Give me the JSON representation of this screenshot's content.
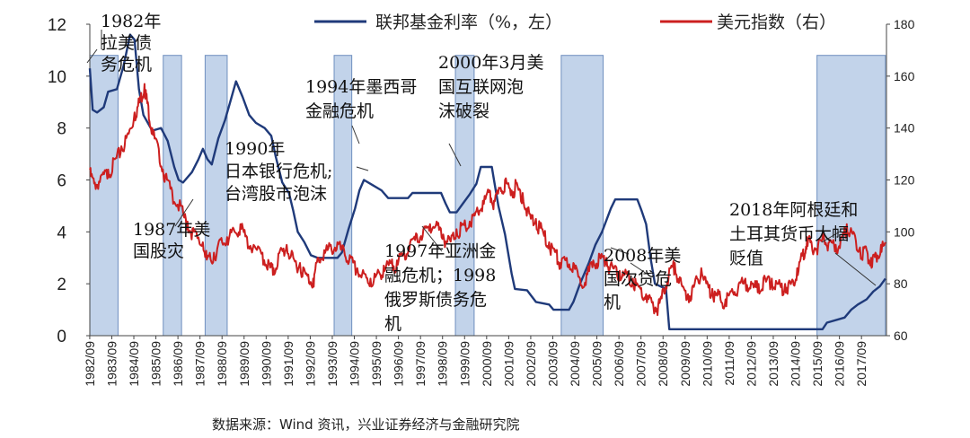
{
  "chart_data": {
    "type": "line",
    "x_range": [
      1982.67,
      2018.8
    ],
    "y_left_range": [
      0,
      12
    ],
    "y_right_range": [
      60,
      180
    ],
    "y_left_ticks": [
      0,
      2,
      4,
      6,
      8,
      10,
      12
    ],
    "y_right_ticks": [
      60,
      80,
      100,
      120,
      140,
      160,
      180
    ],
    "x_tick_labels": [
      "1982/09",
      "1983/09",
      "1984/09",
      "1985/09",
      "1986/09",
      "1987/09",
      "1988/09",
      "1989/09",
      "1990/09",
      "1991/09",
      "1992/09",
      "1993/09",
      "1994/09",
      "1995/09",
      "1996/09",
      "1997/09",
      "1998/09",
      "1999/09",
      "2000/09",
      "2001/09",
      "2002/09",
      "2003/09",
      "2004/09",
      "2005/09",
      "2006/09",
      "2007/09",
      "2008/09",
      "2009/09",
      "2010/09",
      "2011/09",
      "2012/09",
      "2013/09",
      "2014/09",
      "2015/09",
      "2016/09",
      "2017/09"
    ],
    "legend_position": "top",
    "grid": false,
    "colors": {
      "fed_funds": "#1f3a7a",
      "dollar_index": "#cc1f1f",
      "shade": "#b7cbe6",
      "shade_border": "#6f8fbf"
    },
    "series": [
      {
        "name": "联邦基金利率（%，左）",
        "axis": "left",
        "points": [
          [
            1982.67,
            10.3
          ],
          [
            1982.8,
            8.7
          ],
          [
            1983.0,
            8.6
          ],
          [
            1983.3,
            8.8
          ],
          [
            1983.5,
            9.4
          ],
          [
            1983.9,
            9.5
          ],
          [
            1984.2,
            10.4
          ],
          [
            1984.5,
            11.6
          ],
          [
            1984.7,
            11.4
          ],
          [
            1984.9,
            9.5
          ],
          [
            1985.1,
            8.5
          ],
          [
            1985.5,
            7.9
          ],
          [
            1985.9,
            8.0
          ],
          [
            1986.2,
            7.5
          ],
          [
            1986.5,
            6.5
          ],
          [
            1986.7,
            6.0
          ],
          [
            1986.9,
            5.9
          ],
          [
            1987.3,
            6.3
          ],
          [
            1987.6,
            6.8
          ],
          [
            1987.8,
            7.2
          ],
          [
            1988.0,
            6.8
          ],
          [
            1988.2,
            6.6
          ],
          [
            1988.5,
            7.6
          ],
          [
            1988.8,
            8.3
          ],
          [
            1989.1,
            9.2
          ],
          [
            1989.3,
            9.8
          ],
          [
            1989.6,
            9.2
          ],
          [
            1989.9,
            8.5
          ],
          [
            1990.2,
            8.2
          ],
          [
            1990.6,
            8.0
          ],
          [
            1990.9,
            7.7
          ],
          [
            1991.1,
            6.9
          ],
          [
            1991.4,
            5.9
          ],
          [
            1991.7,
            5.5
          ],
          [
            1991.9,
            4.8
          ],
          [
            1992.1,
            4.0
          ],
          [
            1992.4,
            3.6
          ],
          [
            1992.7,
            3.1
          ],
          [
            1993.0,
            3.0
          ],
          [
            1993.5,
            3.0
          ],
          [
            1993.9,
            3.0
          ],
          [
            1994.1,
            3.2
          ],
          [
            1994.4,
            4.1
          ],
          [
            1994.7,
            4.9
          ],
          [
            1994.9,
            5.6
          ],
          [
            1995.1,
            6.0
          ],
          [
            1995.5,
            5.8
          ],
          [
            1995.9,
            5.6
          ],
          [
            1996.2,
            5.3
          ],
          [
            1996.7,
            5.3
          ],
          [
            1997.1,
            5.3
          ],
          [
            1997.3,
            5.5
          ],
          [
            1997.7,
            5.5
          ],
          [
            1998.2,
            5.5
          ],
          [
            1998.6,
            5.5
          ],
          [
            1998.8,
            5.1
          ],
          [
            1999.0,
            4.75
          ],
          [
            1999.3,
            4.75
          ],
          [
            1999.6,
            5.1
          ],
          [
            1999.9,
            5.45
          ],
          [
            2000.2,
            5.85
          ],
          [
            2000.4,
            6.5
          ],
          [
            2000.9,
            6.5
          ],
          [
            2001.0,
            6.0
          ],
          [
            2001.2,
            5.0
          ],
          [
            2001.5,
            3.9
          ],
          [
            2001.8,
            2.4
          ],
          [
            2001.95,
            1.8
          ],
          [
            2002.5,
            1.75
          ],
          [
            2002.9,
            1.3
          ],
          [
            2003.5,
            1.2
          ],
          [
            2003.7,
            1.0
          ],
          [
            2004.4,
            1.0
          ],
          [
            2004.6,
            1.3
          ],
          [
            2004.9,
            2.0
          ],
          [
            2005.3,
            2.8
          ],
          [
            2005.6,
            3.5
          ],
          [
            2005.9,
            4.0
          ],
          [
            2006.3,
            4.9
          ],
          [
            2006.5,
            5.25
          ],
          [
            2007.5,
            5.25
          ],
          [
            2007.7,
            4.8
          ],
          [
            2007.9,
            4.3
          ],
          [
            2008.1,
            3.0
          ],
          [
            2008.3,
            2.0
          ],
          [
            2008.8,
            1.8
          ],
          [
            2008.95,
            0.25
          ],
          [
            2015.9,
            0.25
          ],
          [
            2016.1,
            0.5
          ],
          [
            2016.9,
            0.7
          ],
          [
            2017.2,
            1.0
          ],
          [
            2017.5,
            1.2
          ],
          [
            2017.9,
            1.4
          ],
          [
            2018.2,
            1.7
          ],
          [
            2018.5,
            1.9
          ],
          [
            2018.75,
            2.2
          ]
        ]
      },
      {
        "name": "美元指数（右）",
        "axis": "right",
        "points": [
          [
            1982.67,
            124
          ],
          [
            1982.9,
            119
          ],
          [
            1983.2,
            122
          ],
          [
            1983.5,
            124
          ],
          [
            1983.8,
            128
          ],
          [
            1984.1,
            133
          ],
          [
            1984.4,
            138
          ],
          [
            1984.7,
            146
          ],
          [
            1984.95,
            152
          ],
          [
            1985.15,
            157
          ],
          [
            1985.3,
            150
          ],
          [
            1985.5,
            140
          ],
          [
            1985.8,
            132
          ],
          [
            1986.1,
            122
          ],
          [
            1986.4,
            116
          ],
          [
            1986.8,
            110
          ],
          [
            1987.1,
            104
          ],
          [
            1987.4,
            100
          ],
          [
            1987.8,
            96
          ],
          [
            1988.0,
            90
          ],
          [
            1988.3,
            92
          ],
          [
            1988.6,
            97
          ],
          [
            1988.9,
            98
          ],
          [
            1989.2,
            101
          ],
          [
            1989.5,
            103
          ],
          [
            1989.8,
            98
          ],
          [
            1990.1,
            95
          ],
          [
            1990.5,
            92
          ],
          [
            1990.8,
            88
          ],
          [
            1991.0,
            86
          ],
          [
            1991.3,
            93
          ],
          [
            1991.6,
            95
          ],
          [
            1991.9,
            90
          ],
          [
            1992.2,
            88
          ],
          [
            1992.5,
            84
          ],
          [
            1992.8,
            82
          ],
          [
            1993.0,
            90
          ],
          [
            1993.3,
            93
          ],
          [
            1993.6,
            95
          ],
          [
            1993.9,
            96
          ],
          [
            1994.2,
            93
          ],
          [
            1994.5,
            90
          ],
          [
            1994.8,
            86
          ],
          [
            1995.1,
            84
          ],
          [
            1995.4,
            82
          ],
          [
            1995.7,
            84
          ],
          [
            1996.0,
            87
          ],
          [
            1996.3,
            88
          ],
          [
            1996.6,
            89
          ],
          [
            1996.9,
            92
          ],
          [
            1997.2,
            96
          ],
          [
            1997.5,
            99
          ],
          [
            1997.8,
            101
          ],
          [
            1998.1,
            103
          ],
          [
            1998.4,
            104
          ],
          [
            1998.7,
            99
          ],
          [
            1999.0,
            97
          ],
          [
            1999.3,
            101
          ],
          [
            1999.6,
            103
          ],
          [
            1999.9,
            104
          ],
          [
            2000.2,
            108
          ],
          [
            2000.5,
            112
          ],
          [
            2000.8,
            116
          ],
          [
            2001.0,
            112
          ],
          [
            2001.3,
            117
          ],
          [
            2001.5,
            120
          ],
          [
            2001.8,
            116
          ],
          [
            2002.0,
            119
          ],
          [
            2002.3,
            115
          ],
          [
            2002.6,
            107
          ],
          [
            2002.9,
            105
          ],
          [
            2003.2,
            101
          ],
          [
            2003.5,
            96
          ],
          [
            2003.8,
            93
          ],
          [
            2004.0,
            88
          ],
          [
            2004.3,
            90
          ],
          [
            2004.6,
            88
          ],
          [
            2004.9,
            82
          ],
          [
            2005.2,
            84
          ],
          [
            2005.5,
            89
          ],
          [
            2005.8,
            91
          ],
          [
            2006.1,
            90
          ],
          [
            2006.4,
            86
          ],
          [
            2006.7,
            85
          ],
          [
            2007.0,
            84
          ],
          [
            2007.3,
            82
          ],
          [
            2007.6,
            79
          ],
          [
            2007.9,
            76
          ],
          [
            2008.2,
            73
          ],
          [
            2008.45,
            72
          ],
          [
            2008.7,
            78
          ],
          [
            2008.95,
            86
          ],
          [
            2009.2,
            88
          ],
          [
            2009.5,
            80
          ],
          [
            2009.8,
            76
          ],
          [
            2010.1,
            80
          ],
          [
            2010.4,
            86
          ],
          [
            2010.7,
            80
          ],
          [
            2010.9,
            78
          ],
          [
            2011.2,
            76
          ],
          [
            2011.5,
            74
          ],
          [
            2011.8,
            78
          ],
          [
            2012.1,
            80
          ],
          [
            2012.4,
            82
          ],
          [
            2012.7,
            80
          ],
          [
            2013.0,
            80
          ],
          [
            2013.3,
            82
          ],
          [
            2013.6,
            82
          ],
          [
            2013.9,
            80
          ],
          [
            2014.2,
            80
          ],
          [
            2014.5,
            81
          ],
          [
            2014.75,
            86
          ],
          [
            2015.0,
            92
          ],
          [
            2015.2,
            98
          ],
          [
            2015.4,
            96
          ],
          [
            2015.7,
            95
          ],
          [
            2015.95,
            99
          ],
          [
            2016.2,
            96
          ],
          [
            2016.5,
            95
          ],
          [
            2016.8,
            98
          ],
          [
            2017.0,
            103
          ],
          [
            2017.3,
            100
          ],
          [
            2017.6,
            94
          ],
          [
            2017.9,
            93
          ],
          [
            2018.1,
            90
          ],
          [
            2018.3,
            92
          ],
          [
            2018.55,
            95
          ],
          [
            2018.75,
            96
          ]
        ]
      }
    ],
    "shaded_periods": [
      {
        "start": 1982.67,
        "end": 1983.95,
        "top": 100
      },
      {
        "start": 1986.0,
        "end": 1986.83,
        "top": 98
      },
      {
        "start": 1987.9,
        "end": 1988.9,
        "top": 98
      },
      {
        "start": 1993.75,
        "end": 1994.55,
        "top": 100
      },
      {
        "start": 1999.25,
        "end": 2000.1,
        "top": 100
      },
      {
        "start": 2004.05,
        "end": 2005.95,
        "top": 98
      },
      {
        "start": 2015.65,
        "end": 2018.75,
        "top": 98
      }
    ],
    "annotations": [
      {
        "lines": [
          "1982年",
          "拉美债",
          "务危机"
        ]
      },
      {
        "lines": [
          "1987年美",
          "国股灾"
        ]
      },
      {
        "lines": [
          "1990年",
          "日本银行危机;",
          "台湾股市泡沫"
        ]
      },
      {
        "lines": [
          "1994年墨西哥",
          "金融危机"
        ]
      },
      {
        "lines": [
          "2000年3月美",
          "国互联网泡",
          "沫破裂"
        ]
      },
      {
        "lines": [
          "1997年亚洲金",
          "融危机；1998",
          "俄罗斯债务危",
          "机"
        ]
      },
      {
        "lines": [
          "2008年美",
          "国次贷危",
          "机"
        ]
      },
      {
        "lines": [
          "2018年阿根廷和",
          "土耳其货币大幅",
          "贬值"
        ]
      }
    ],
    "source": "数据来源：Wind 资讯，兴业证券经济与金融研究院"
  }
}
